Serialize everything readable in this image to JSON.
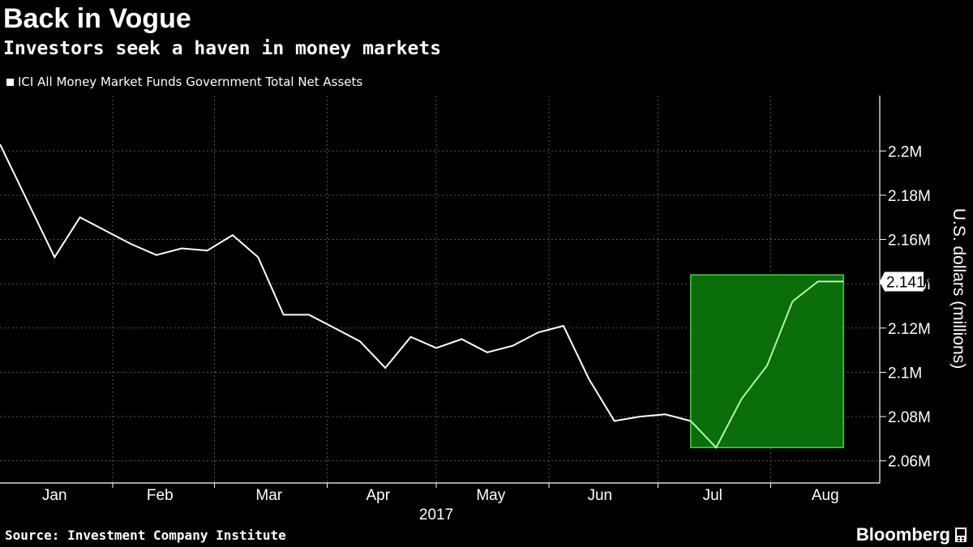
{
  "header": {
    "title": "Back in Vogue",
    "subtitle": "Investors seek a haven in money markets"
  },
  "legend": {
    "label": "ICI All Money Market Funds Government Total Net Assets",
    "swatch_color": "#ffffff"
  },
  "footer": {
    "source": "Source: Investment Company Institute",
    "brand": "Bloomberg",
    "brand_icon": "bloomberg-terminal-icon"
  },
  "colors": {
    "background": "#000000",
    "line": "#ffffff",
    "highlight_fill": "#0a6e0a",
    "highlight_stroke": "#3fd43f",
    "highlight_line": "#b8f5a8",
    "grid": "#555555"
  },
  "chart_data": {
    "type": "line",
    "title": "Back in Vogue",
    "subtitle": "Investors seek a haven in money markets",
    "ylabel": "U.S. dollars (millions)",
    "xlabel": "2017",
    "ylim": [
      2.05,
      2.225
    ],
    "yticks": [
      2.06,
      2.08,
      2.1,
      2.12,
      2.14,
      2.16,
      2.18,
      2.2
    ],
    "ytick_labels": [
      "2.06M",
      "2.08M",
      "2.1M",
      "2.12M",
      "2.14M",
      "2.16M",
      "2.18M",
      "2.2M"
    ],
    "xlim": [
      "2017-01-01",
      "2017-08-31"
    ],
    "xticks": [
      {
        "label": "Jan",
        "date": "2017-01-16"
      },
      {
        "label": "Feb",
        "date": "2017-02-14"
      },
      {
        "label": "Mar",
        "date": "2017-03-16"
      },
      {
        "label": "Apr",
        "date": "2017-04-15"
      },
      {
        "label": "May",
        "date": "2017-05-16"
      },
      {
        "label": "Jun",
        "date": "2017-06-15"
      },
      {
        "label": "Jul",
        "date": "2017-07-16"
      },
      {
        "label": "Aug",
        "date": "2017-08-16"
      }
    ],
    "year_label": "2017",
    "grid": true,
    "legend_position": "top-left",
    "series": [
      {
        "name": "ICI All Money Market Funds Government Total Net Assets",
        "color": "#ffffff",
        "x": [
          "2017-01-01",
          "2017-01-16",
          "2017-01-23",
          "2017-01-30",
          "2017-02-06",
          "2017-02-13",
          "2017-02-20",
          "2017-02-27",
          "2017-03-06",
          "2017-03-13",
          "2017-03-20",
          "2017-03-27",
          "2017-04-03",
          "2017-04-10",
          "2017-04-17",
          "2017-04-24",
          "2017-05-01",
          "2017-05-08",
          "2017-05-15",
          "2017-05-22",
          "2017-05-29",
          "2017-06-05",
          "2017-06-12",
          "2017-06-19",
          "2017-06-26",
          "2017-07-03",
          "2017-07-10",
          "2017-07-17",
          "2017-07-24",
          "2017-07-31",
          "2017-08-07",
          "2017-08-14",
          "2017-08-21"
        ],
        "values": [
          2.203,
          2.152,
          2.17,
          2.164,
          2.158,
          2.153,
          2.156,
          2.155,
          2.162,
          2.152,
          2.126,
          2.126,
          2.12,
          2.114,
          2.102,
          2.116,
          2.111,
          2.115,
          2.109,
          2.112,
          2.118,
          2.121,
          2.097,
          2.078,
          2.08,
          2.081,
          2.078,
          2.066,
          2.088,
          2.103,
          2.132,
          2.141,
          2.141
        ]
      }
    ],
    "last_value_label": "2.141M",
    "highlight": {
      "x_start": "2017-07-10",
      "x_end": "2017-08-21",
      "y_start": 2.066,
      "y_end": 2.144
    }
  }
}
